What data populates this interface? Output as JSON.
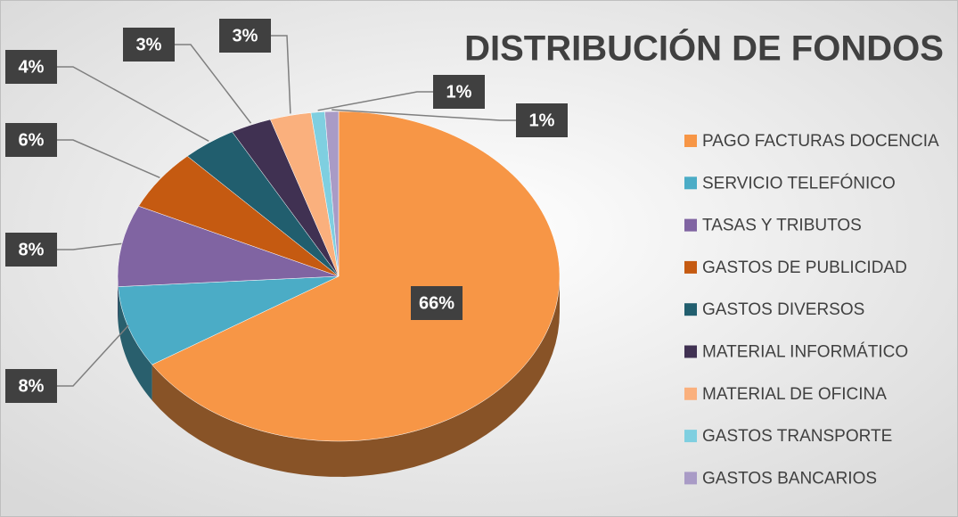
{
  "chart_data": {
    "type": "pie",
    "title": "DISTRIBUCIÓN DE FONDOS",
    "categories": [
      "PAGO FACTURAS DOCENCIA",
      "SERVICIO TELEFÓNICO",
      "TASAS Y TRIBUTOS",
      "GASTOS DE PUBLICIDAD",
      "GASTOS DIVERSOS",
      "MATERIAL INFORMÁTICO",
      "MATERIAL DE OFICINA",
      "GASTOS TRANSPORTE",
      "GASTOS BANCARIOS"
    ],
    "values": [
      66,
      8,
      8,
      6,
      4,
      3,
      3,
      1,
      1
    ],
    "value_labels": [
      "66%",
      "8%",
      "8%",
      "6%",
      "4%",
      "3%",
      "3%",
      "1%",
      "1%"
    ],
    "colors": [
      "#f79646",
      "#4bacc6",
      "#8064a2",
      "#c55a11",
      "#215e6e",
      "#403152",
      "#fab07d",
      "#7fcfe0",
      "#a99bc6"
    ],
    "legend": "right"
  }
}
